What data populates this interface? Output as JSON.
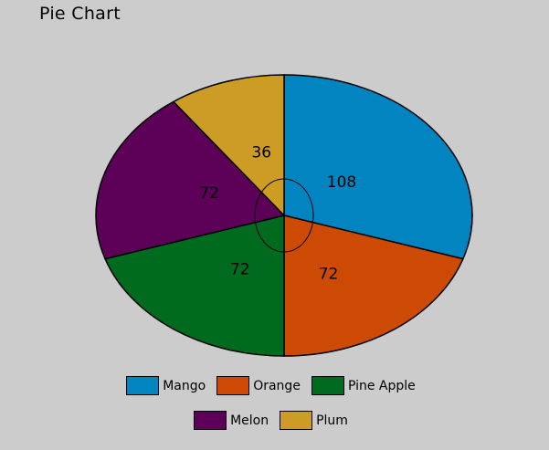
{
  "chart_data": {
    "type": "pie",
    "title": "Pie Chart",
    "categories": [
      "Mango",
      "Orange",
      "Pine Apple",
      "Melon",
      "Plum"
    ],
    "values": [
      108,
      72,
      72,
      72,
      36
    ],
    "colors": [
      "#0284c0",
      "#cc4a04",
      "#006a1e",
      "#5c0058",
      "#cc9c24"
    ],
    "legend_placement": "bottom"
  }
}
